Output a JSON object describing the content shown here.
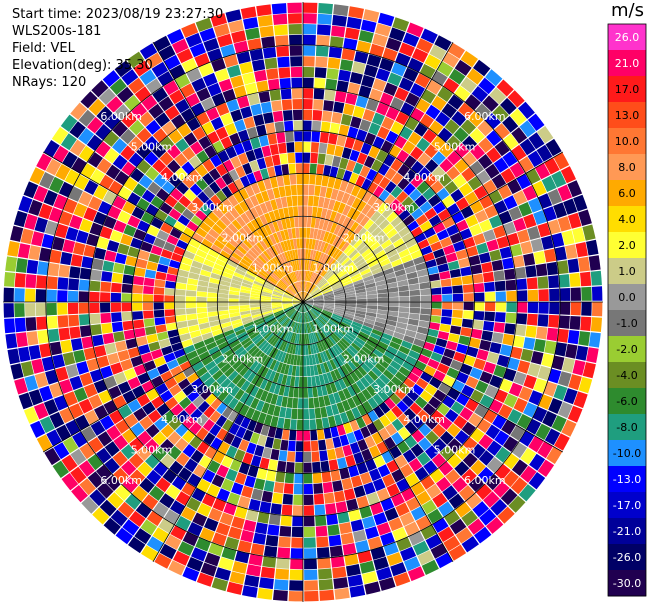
{
  "info": {
    "start_time": "Start time: 2023/08/19 23:27:30",
    "instrument": "WLS200s-181",
    "field": "Field: VEL",
    "elevation": "Elevation(deg): 35.30",
    "nrays": "NRays: 120"
  },
  "colorbar": {
    "unit": "m/s",
    "ticks": [
      "26.0",
      "21.0",
      "17.0",
      "13.0",
      "10.0",
      "8.0",
      "6.0",
      "4.0",
      "2.0",
      "1.0",
      "0.0",
      "-1.0",
      "-2.0",
      "-4.0",
      "-6.0",
      "-8.0",
      "-10.0",
      "-13.0",
      "-17.0",
      "-21.0",
      "-26.0",
      "-30.0"
    ],
    "colors": [
      "#ff33cc",
      "#ff0066",
      "#ff1a1a",
      "#ff4d1a",
      "#ff7733",
      "#ff9955",
      "#ffaa00",
      "#ffdd00",
      "#ffff33",
      "#cccc88",
      "#999999",
      "#777777",
      "#9acd32",
      "#6b8e23",
      "#2e8b2e",
      "#1f9e7f",
      "#1e90ff",
      "#0000ff",
      "#0000cc",
      "#000099",
      "#000066",
      "#200050"
    ]
  },
  "chart_data": {
    "type": "heatmap",
    "subtype": "ppi_polar",
    "field": "VEL",
    "unit": "m/s",
    "elevation_deg": 35.3,
    "nrays": 120,
    "vmin": -30.0,
    "vmax": 26.0,
    "range_max_km": 7.0,
    "ring_ticks_km": [
      1.0,
      2.0,
      3.0,
      4.0,
      5.0,
      6.0
    ],
    "ring_labels": [
      "1.00km",
      "2.00km",
      "3.00km",
      "4.00km",
      "5.00km",
      "6.00km"
    ],
    "spokes_deg": [
      0,
      30,
      60,
      90,
      120,
      150,
      180,
      210,
      240,
      270,
      300,
      330
    ],
    "valid_data_range_km": 3.0,
    "near_field_summary": [
      {
        "azimuth_sector": "north (300-40 deg)",
        "velocity_ms": 8.0
      },
      {
        "azimuth_sector": "northeast (40-70 deg)",
        "velocity_ms": 2.0
      },
      {
        "azimuth_sector": "east (70-110 deg)",
        "velocity_ms": 0.0
      },
      {
        "azimuth_sector": "south (110-250 deg)",
        "velocity_ms": -6.0
      },
      {
        "azimuth_sector": "west (250-300 deg)",
        "velocity_ms": 2.0
      }
    ],
    "far_field": "noise (random velocities)"
  }
}
